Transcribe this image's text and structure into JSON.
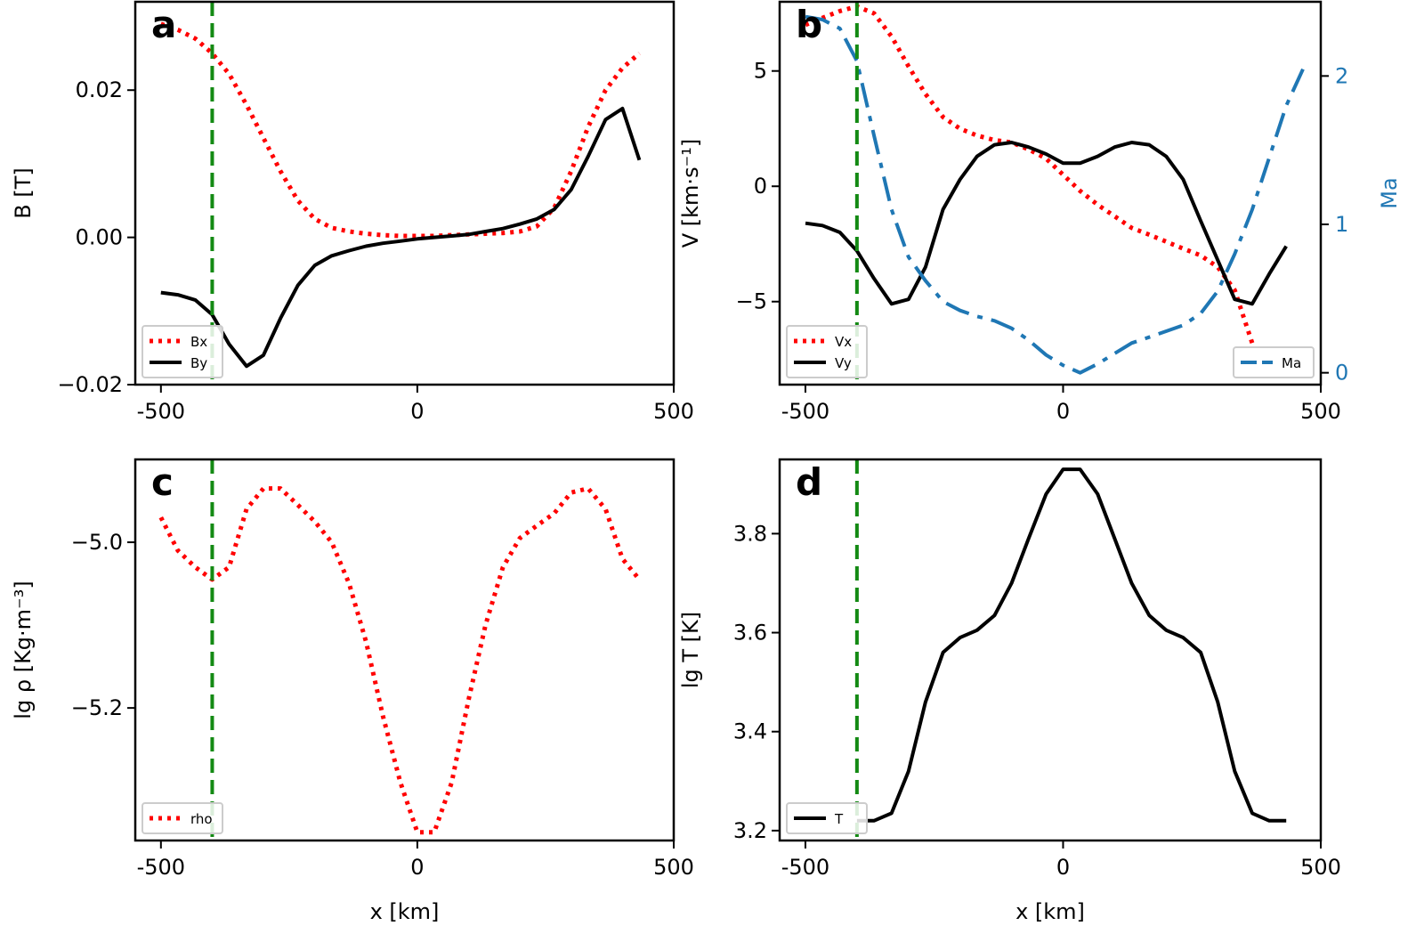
{
  "chart_data": [
    {
      "panel": "a",
      "type": "line",
      "xlabel": "",
      "ylabel": "B [T]",
      "xlim": [
        -550,
        500
      ],
      "ylim": [
        -0.02,
        0.032
      ],
      "xticks": [
        -500,
        0,
        500
      ],
      "xtick_labels": [
        "-500",
        "0",
        "500"
      ],
      "yticks": [
        -0.02,
        0.0,
        0.02
      ],
      "ytick_labels": [
        "−0.02",
        "0.00",
        "0.02"
      ],
      "legend_loc": "lower-left",
      "vline": -400,
      "series": [
        {
          "name": "Bx",
          "style": "dotted",
          "color": "#ff0000",
          "x": [
            -500,
            -467,
            -433,
            -400,
            -367,
            -333,
            -300,
            -267,
            -233,
            -200,
            -167,
            -133,
            -100,
            -67,
            -33,
            0,
            33,
            67,
            100,
            133,
            167,
            200,
            233,
            267,
            300,
            333,
            367,
            400,
            433
          ],
          "y": [
            0.029,
            0.0282,
            0.027,
            0.025,
            0.0222,
            0.018,
            0.0135,
            0.009,
            0.005,
            0.0025,
            0.0013,
            0.0008,
            0.0005,
            0.0003,
            0.0002,
            0.0002,
            0.0002,
            0.0003,
            0.0004,
            0.0005,
            0.0006,
            0.0008,
            0.0015,
            0.004,
            0.009,
            0.015,
            0.02,
            0.023,
            0.025
          ]
        },
        {
          "name": "By",
          "style": "solid",
          "color": "#000000",
          "x": [
            -500,
            -467,
            -433,
            -400,
            -367,
            -333,
            -300,
            -267,
            -233,
            -200,
            -167,
            -133,
            -100,
            -67,
            -33,
            0,
            33,
            67,
            100,
            133,
            167,
            200,
            233,
            267,
            300,
            333,
            367,
            400,
            433
          ],
          "y": [
            -0.0075,
            -0.0078,
            -0.0085,
            -0.0105,
            -0.0145,
            -0.0175,
            -0.016,
            -0.011,
            -0.0065,
            -0.0038,
            -0.0025,
            -0.0018,
            -0.0012,
            -0.0008,
            -0.0005,
            -0.0002,
            0.0,
            0.0002,
            0.0004,
            0.0008,
            0.0012,
            0.0018,
            0.0025,
            0.0038,
            0.0065,
            0.011,
            0.016,
            0.0175,
            0.0105
          ]
        }
      ]
    },
    {
      "panel": "b",
      "type": "line",
      "xlabel": "",
      "ylabel": "V [km·s⁻¹]",
      "ylabel_right": "Ma",
      "xlim": [
        -550,
        500
      ],
      "ylim": [
        -8.6,
        8.0
      ],
      "ylim_right": [
        -0.08,
        2.5
      ],
      "xticks": [
        -500,
        0,
        500
      ],
      "xtick_labels": [
        "-500",
        "0",
        "500"
      ],
      "yticks": [
        -5,
        0,
        5
      ],
      "ytick_labels": [
        "−5",
        "0",
        "5"
      ],
      "yticks_right": [
        0,
        1,
        2
      ],
      "ytick_labels_right": [
        "0",
        "1",
        "2"
      ],
      "legend_loc": "lower-left",
      "legend_right_loc": "lower-right",
      "vline": -400,
      "series": [
        {
          "name": "Vx",
          "style": "dotted",
          "color": "#ff0000",
          "axis": "left",
          "x": [
            -500,
            -467,
            -433,
            -400,
            -367,
            -333,
            -300,
            -267,
            -233,
            -200,
            -167,
            -133,
            -100,
            -67,
            -33,
            0,
            33,
            67,
            100,
            133,
            167,
            200,
            233,
            267,
            300,
            333,
            367
          ],
          "y": [
            7.0,
            7.3,
            7.6,
            7.8,
            7.5,
            6.5,
            5.2,
            4.0,
            3.0,
            2.5,
            2.2,
            2.0,
            1.9,
            1.6,
            1.2,
            0.5,
            -0.2,
            -0.8,
            -1.3,
            -1.8,
            -2.1,
            -2.4,
            -2.7,
            -3.0,
            -3.5,
            -4.5,
            -6.8
          ]
        },
        {
          "name": "Vy",
          "style": "solid",
          "color": "#000000",
          "axis": "left",
          "x": [
            -500,
            -467,
            -433,
            -400,
            -367,
            -333,
            -300,
            -267,
            -233,
            -200,
            -167,
            -133,
            -100,
            -67,
            -33,
            0,
            33,
            67,
            100,
            133,
            167,
            200,
            233,
            267,
            300,
            333,
            367,
            400,
            433
          ],
          "y": [
            -1.6,
            -1.7,
            -2.0,
            -2.8,
            -4.0,
            -5.1,
            -4.9,
            -3.5,
            -1.0,
            0.3,
            1.3,
            1.8,
            1.9,
            1.7,
            1.4,
            1.0,
            1.0,
            1.3,
            1.7,
            1.9,
            1.8,
            1.3,
            0.3,
            -1.5,
            -3.2,
            -4.9,
            -5.1,
            -3.8,
            -2.6
          ]
        },
        {
          "name": "Ma",
          "style": "dashdot",
          "color": "#1f77b4",
          "axis": "right",
          "x": [
            -500,
            -467,
            -433,
            -400,
            -367,
            -333,
            -300,
            -267,
            -233,
            -200,
            -167,
            -133,
            -100,
            -67,
            -33,
            0,
            33,
            67,
            100,
            133,
            167,
            200,
            233,
            267,
            300,
            333,
            367,
            400,
            433,
            466
          ],
          "y": [
            2.4,
            2.38,
            2.32,
            2.1,
            1.6,
            1.1,
            0.78,
            0.62,
            0.48,
            0.42,
            0.38,
            0.35,
            0.3,
            0.22,
            0.12,
            0.05,
            0.0,
            0.06,
            0.13,
            0.2,
            0.24,
            0.28,
            0.32,
            0.4,
            0.55,
            0.8,
            1.1,
            1.45,
            1.8,
            2.05
          ]
        }
      ]
    },
    {
      "panel": "c",
      "type": "line",
      "xlabel": "x [km]",
      "ylabel": "lg ρ [Kg·m⁻³]",
      "xlim": [
        -550,
        500
      ],
      "ylim": [
        -5.36,
        -4.9
      ],
      "xticks": [
        -500,
        0,
        500
      ],
      "xtick_labels": [
        "-500",
        "0",
        "500"
      ],
      "yticks": [
        -5.2,
        -5.0
      ],
      "ytick_labels": [
        "−5.2",
        "−5.0"
      ],
      "legend_loc": "lower-left",
      "vline": -400,
      "series": [
        {
          "name": "rho",
          "style": "dotted",
          "color": "#ff0000",
          "x": [
            -500,
            -467,
            -433,
            -400,
            -367,
            -333,
            -300,
            -267,
            -233,
            -200,
            -167,
            -133,
            -100,
            -67,
            -33,
            0,
            33,
            67,
            100,
            133,
            167,
            200,
            233,
            267,
            300,
            333,
            367,
            400,
            433
          ],
          "y": [
            -4.97,
            -5.01,
            -5.03,
            -5.045,
            -5.03,
            -4.96,
            -4.935,
            -4.935,
            -4.955,
            -4.975,
            -5.0,
            -5.05,
            -5.12,
            -5.21,
            -5.29,
            -5.35,
            -5.35,
            -5.29,
            -5.19,
            -5.1,
            -5.03,
            -4.995,
            -4.98,
            -4.965,
            -4.94,
            -4.935,
            -4.96,
            -5.02,
            -5.045
          ]
        }
      ]
    },
    {
      "panel": "d",
      "type": "line",
      "xlabel": "x [km]",
      "ylabel": "lg T [K]",
      "xlim": [
        -550,
        500
      ],
      "ylim": [
        3.18,
        3.95
      ],
      "xticks": [
        -500,
        0,
        500
      ],
      "xtick_labels": [
        "-500",
        "0",
        "500"
      ],
      "yticks": [
        3.2,
        3.4,
        3.6,
        3.8
      ],
      "ytick_labels": [
        "3.2",
        "3.4",
        "3.6",
        "3.8"
      ],
      "legend_loc": "lower-left",
      "vline": -400,
      "series": [
        {
          "name": "T",
          "style": "solid",
          "color": "#000000",
          "x": [
            -400,
            -367,
            -333,
            -300,
            -267,
            -233,
            -200,
            -167,
            -133,
            -100,
            -67,
            -33,
            0,
            33,
            67,
            100,
            133,
            167,
            200,
            233,
            267,
            300,
            333,
            367,
            400,
            433
          ],
          "y": [
            3.22,
            3.22,
            3.235,
            3.32,
            3.46,
            3.56,
            3.59,
            3.605,
            3.635,
            3.7,
            3.79,
            3.88,
            3.93,
            3.93,
            3.88,
            3.79,
            3.7,
            3.635,
            3.605,
            3.59,
            3.56,
            3.46,
            3.32,
            3.235,
            3.22,
            3.22
          ]
        }
      ]
    }
  ]
}
